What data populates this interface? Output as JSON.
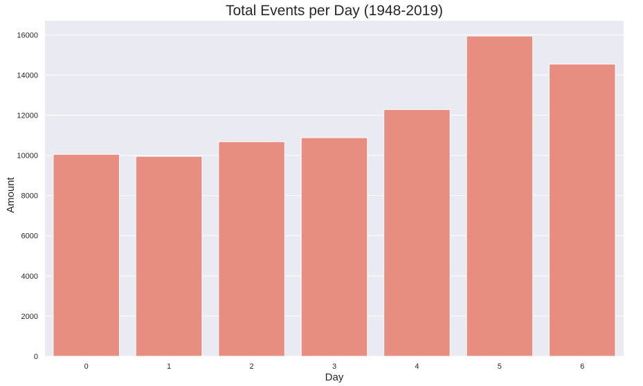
{
  "chart_data": {
    "type": "bar",
    "title": "Total Events per Day (1948-2019)",
    "xlabel": "Day",
    "ylabel": "Amount",
    "categories": [
      "0",
      "1",
      "2",
      "3",
      "4",
      "5",
      "6"
    ],
    "values": [
      10050,
      9950,
      10680,
      10880,
      12280,
      15940,
      14540
    ],
    "ylim": [
      0,
      16700
    ],
    "yticks": [
      "0",
      "2000",
      "4000",
      "6000",
      "8000",
      "10000",
      "12000",
      "14000",
      "16000"
    ],
    "grid": true,
    "legend": "none",
    "colors": {
      "bar": "#e88e80",
      "background": "#eaeaf2",
      "grid": "#ffffff",
      "text": "#262626"
    }
  }
}
